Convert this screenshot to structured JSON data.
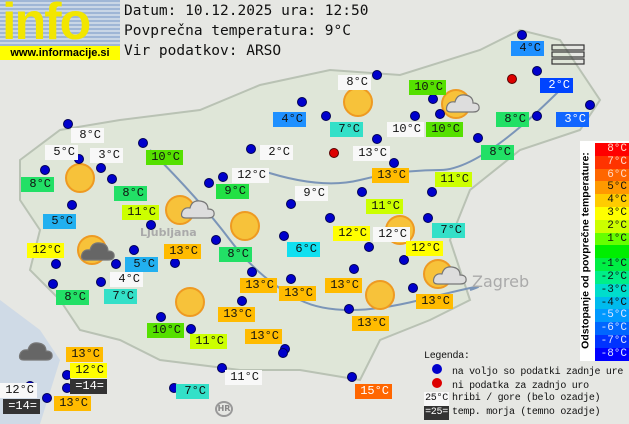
{
  "header": {
    "date_line": "Datum: 10.12.2025 ura: 12:50",
    "avg_line": "Povprečna temperatura: 9°C",
    "source_line": "Vir podatkov: ARSO"
  },
  "logo": {
    "text": "info",
    "url": "www.informacije.si"
  },
  "map_labels": {
    "capital": "Ljubljana",
    "croatia_badge": "HR",
    "zagreb": "Zagreb"
  },
  "stations": [
    {
      "t": "4°C",
      "c": "#1e90ff"
    },
    {
      "t": "8°C",
      "c": "#f8f8f8"
    },
    {
      "t": "10°C",
      "c": "#55e000"
    },
    {
      "t": "2°C",
      "c": "#0044ff",
      "w": 1
    },
    {
      "t": "4°C",
      "c": "#1e90ff"
    },
    {
      "t": "7°C",
      "c": "#33e0c8"
    },
    {
      "t": "10°C",
      "c": "#f8f8f8"
    },
    {
      "t": "10°C",
      "c": "#55e000"
    },
    {
      "t": "8°C",
      "c": "#22e066"
    },
    {
      "t": "3°C",
      "c": "#1166ff",
      "w": 1
    },
    {
      "t": "2°C",
      "c": "#f8f8f8"
    },
    {
      "t": "13°C",
      "c": "#f8f8f8"
    },
    {
      "t": "8°C",
      "c": "#22e066"
    },
    {
      "t": "13°C",
      "c": "#ffbb00"
    },
    {
      "t": "11°C",
      "c": "#ccff00"
    },
    {
      "t": "8°C",
      "c": "#f8f8f8"
    },
    {
      "t": "5°C",
      "c": "#f8f8f8"
    },
    {
      "t": "3°C",
      "c": "#f8f8f8"
    },
    {
      "t": "10°C",
      "c": "#55e000"
    },
    {
      "t": "8°C",
      "c": "#22e066"
    },
    {
      "t": "8°C",
      "c": "#22e066"
    },
    {
      "t": "12°C",
      "c": "#f8f8f8"
    },
    {
      "t": "9°C",
      "c": "#22e044"
    },
    {
      "t": "9°C",
      "c": "#f8f8f8"
    },
    {
      "t": "11°C",
      "c": "#ccff00"
    },
    {
      "t": "5°C",
      "c": "#22b0f0"
    },
    {
      "t": "11°C",
      "c": "#ccff00"
    },
    {
      "t": "12°C",
      "c": "#ffff00"
    },
    {
      "t": "12°C",
      "c": "#f8f8f8"
    },
    {
      "t": "7°C",
      "c": "#33e0c8"
    },
    {
      "t": "12°C",
      "c": "#ffff00"
    },
    {
      "t": "6°C",
      "c": "#11e0f0"
    },
    {
      "t": "12°C",
      "c": "#ffff00"
    },
    {
      "t": "13°C",
      "c": "#ffbb00"
    },
    {
      "t": "8°C",
      "c": "#22e066"
    },
    {
      "t": "5°C",
      "c": "#22b0f0"
    },
    {
      "t": "4°C",
      "c": "#f8f8f8"
    },
    {
      "t": "8°C",
      "c": "#22e066"
    },
    {
      "t": "7°C",
      "c": "#33e0c8"
    },
    {
      "t": "13°C",
      "c": "#ffbb00"
    },
    {
      "t": "13°C",
      "c": "#ffbb00"
    },
    {
      "t": "13°C",
      "c": "#ffbb00"
    },
    {
      "t": "13°C",
      "c": "#ffbb00"
    },
    {
      "t": "13°C",
      "c": "#ffbb00"
    },
    {
      "t": "13°C",
      "c": "#ffbb00"
    },
    {
      "t": "10°C",
      "c": "#55e000"
    },
    {
      "t": "11°C",
      "c": "#ccff00"
    },
    {
      "t": "13°C",
      "c": "#ffbb00"
    },
    {
      "t": "13°C",
      "c": "#ffbb00"
    },
    {
      "t": "12°C",
      "c": "#ffff00"
    },
    {
      "t": "=14=",
      "c": "#333333",
      "w": 1
    },
    {
      "t": "12°C",
      "c": "#f8f8f8"
    },
    {
      "t": "=14=",
      "c": "#333333",
      "w": 1
    },
    {
      "t": "13°C",
      "c": "#ffbb00"
    },
    {
      "t": "11°C",
      "c": "#f8f8f8"
    },
    {
      "t": "7°C",
      "c": "#33e0c8"
    },
    {
      "t": "15°C",
      "c": "#ff6600",
      "w": 1
    }
  ],
  "scale": {
    "title": "Odstopanje od povprečne temperature:",
    "rows": [
      {
        "l": "8°C",
        "c": "#ff0000"
      },
      {
        "l": "7°C",
        "c": "#ff3300"
      },
      {
        "l": "6°C",
        "c": "#ff6600"
      },
      {
        "l": "5°C",
        "c": "#ff9900"
      },
      {
        "l": "4°C",
        "c": "#ffcc00"
      },
      {
        "l": "3°C",
        "c": "#ffff00"
      },
      {
        "l": "2°C",
        "c": "#ccff00"
      },
      {
        "l": "1°C",
        "c": "#66ff00"
      },
      {
        "l": "",
        "c": "#00ee00"
      },
      {
        "l": "-1°C",
        "c": "#00ee44"
      },
      {
        "l": "-2°C",
        "c": "#00ee88"
      },
      {
        "l": "-3°C",
        "c": "#00ddcc"
      },
      {
        "l": "-4°C",
        "c": "#00bbee"
      },
      {
        "l": "-5°C",
        "c": "#0099ff"
      },
      {
        "l": "-6°C",
        "c": "#0066ff"
      },
      {
        "l": "-7°C",
        "c": "#0033ff"
      },
      {
        "l": "-8°C",
        "c": "#0000ff"
      }
    ]
  },
  "legend": {
    "title": "Legenda:",
    "blue_dot": "na voljo so podatki zadnje ure",
    "red_dot": "ni podatka za zadnjo uro",
    "mountain_sample": "25°C",
    "mountain_text": "hribi / gore (belo ozadje)",
    "sea_sample": "=25=",
    "sea_text": "temp. morja (temno ozadje)"
  }
}
